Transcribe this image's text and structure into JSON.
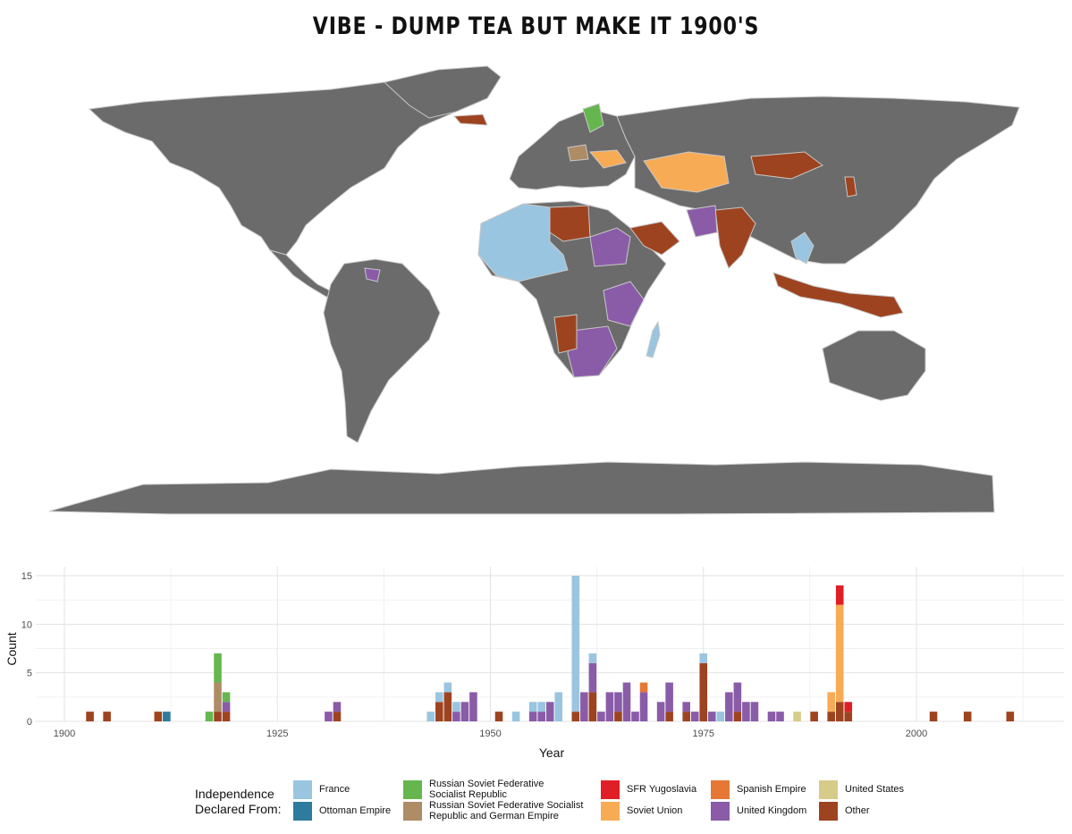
{
  "title": "VIBE - DUMP TEA BUT MAKE IT 1900'S",
  "colors": {
    "france": "#9ac5e0",
    "ottoman": "#2f7b9d",
    "rsfsr": "#66b64f",
    "rsfsr_german": "#ad8c66",
    "sfr_yugoslavia": "#e01e26",
    "soviet_union": "#f8ab55",
    "spanish_empire": "#e57835",
    "united_kingdom": "#8a5ca8",
    "united_states": "#d6cb88",
    "other": "#9e4320",
    "land": "#6b6b6b",
    "border": "#c8c8c8"
  },
  "legend": {
    "title_line1": "Independence",
    "title_line2": "Declared From:",
    "items": [
      {
        "key": "france",
        "label1": "France",
        "label2": ""
      },
      {
        "key": "ottoman",
        "label1": "Ottoman Empire",
        "label2": ""
      },
      {
        "key": "rsfsr",
        "label1": "Russian Soviet Federative",
        "label2": "Socialist Republic"
      },
      {
        "key": "rsfsr_german",
        "label1": "Russian Soviet Federative Socialist",
        "label2": "Republic and German Empire"
      },
      {
        "key": "sfr_yugoslavia",
        "label1": "SFR Yugoslavia",
        "label2": ""
      },
      {
        "key": "soviet_union",
        "label1": "Soviet Union",
        "label2": ""
      },
      {
        "key": "spanish_empire",
        "label1": "Spanish Empire",
        "label2": ""
      },
      {
        "key": "united_kingdom",
        "label1": "United Kingdom",
        "label2": ""
      },
      {
        "key": "united_states",
        "label1": "United States",
        "label2": ""
      },
      {
        "key": "other",
        "label1": "Other",
        "label2": ""
      }
    ]
  },
  "chart_data": {
    "type": "bar",
    "stacked": true,
    "xlabel": "Year",
    "ylabel": "Count",
    "xlim": [
      1898,
      2018
    ],
    "ylim": [
      0,
      15
    ],
    "xticks": [
      1900,
      1925,
      1950,
      1975,
      2000
    ],
    "yticks": [
      0,
      5,
      10,
      15
    ],
    "grid": true,
    "legend_position": "bottom",
    "series_order": [
      "other",
      "united_states",
      "united_kingdom",
      "spanish_empire",
      "soviet_union",
      "sfr_yugoslavia",
      "rsfsr_german",
      "rsfsr",
      "ottoman",
      "france"
    ],
    "bars": [
      {
        "year": 1903,
        "other": 1
      },
      {
        "year": 1905,
        "other": 1
      },
      {
        "year": 1911,
        "other": 1
      },
      {
        "year": 1912,
        "ottoman": 1
      },
      {
        "year": 1917,
        "rsfsr": 1
      },
      {
        "year": 1918,
        "other": 1,
        "rsfsr_german": 3,
        "rsfsr": 3
      },
      {
        "year": 1919,
        "other": 1,
        "united_kingdom": 1,
        "rsfsr": 1
      },
      {
        "year": 1931,
        "united_kingdom": 1
      },
      {
        "year": 1932,
        "other": 1,
        "united_kingdom": 1
      },
      {
        "year": 1943,
        "france": 1
      },
      {
        "year": 1944,
        "other": 2,
        "france": 1
      },
      {
        "year": 1945,
        "other": 3,
        "france": 1
      },
      {
        "year": 1946,
        "united_kingdom": 1,
        "france": 1
      },
      {
        "year": 1947,
        "united_kingdom": 2
      },
      {
        "year": 1948,
        "united_kingdom": 3
      },
      {
        "year": 1951,
        "other": 1
      },
      {
        "year": 1953,
        "france": 1
      },
      {
        "year": 1955,
        "united_kingdom": 1,
        "france": 1
      },
      {
        "year": 1956,
        "united_kingdom": 1,
        "france": 1
      },
      {
        "year": 1957,
        "united_kingdom": 2
      },
      {
        "year": 1958,
        "france": 3
      },
      {
        "year": 1960,
        "other": 1,
        "france": 14
      },
      {
        "year": 1961,
        "united_kingdom": 3
      },
      {
        "year": 1962,
        "other": 3,
        "united_kingdom": 3,
        "france": 1
      },
      {
        "year": 1963,
        "united_kingdom": 1
      },
      {
        "year": 1964,
        "united_kingdom": 3
      },
      {
        "year": 1965,
        "other": 1,
        "united_kingdom": 2
      },
      {
        "year": 1966,
        "united_kingdom": 4
      },
      {
        "year": 1967,
        "united_kingdom": 1
      },
      {
        "year": 1968,
        "united_kingdom": 3,
        "spanish_empire": 1
      },
      {
        "year": 1970,
        "united_kingdom": 2
      },
      {
        "year": 1971,
        "other": 1,
        "united_kingdom": 3
      },
      {
        "year": 1973,
        "other": 1,
        "united_kingdom": 1
      },
      {
        "year": 1974,
        "united_kingdom": 1
      },
      {
        "year": 1975,
        "other": 6,
        "france": 1
      },
      {
        "year": 1976,
        "united_kingdom": 1
      },
      {
        "year": 1977,
        "france": 1
      },
      {
        "year": 1978,
        "united_kingdom": 3
      },
      {
        "year": 1979,
        "other": 1,
        "united_kingdom": 3
      },
      {
        "year": 1980,
        "united_kingdom": 2
      },
      {
        "year": 1981,
        "united_kingdom": 2
      },
      {
        "year": 1983,
        "united_kingdom": 1
      },
      {
        "year": 1984,
        "united_kingdom": 1
      },
      {
        "year": 1986,
        "united_states": 1
      },
      {
        "year": 1988,
        "other": 1
      },
      {
        "year": 1990,
        "other": 1,
        "soviet_union": 2
      },
      {
        "year": 1991,
        "other": 2,
        "soviet_union": 10,
        "sfr_yugoslavia": 2
      },
      {
        "year": 1992,
        "other": 1,
        "sfr_yugoslavia": 1
      },
      {
        "year": 2002,
        "other": 1
      },
      {
        "year": 2006,
        "other": 1
      },
      {
        "year": 2011,
        "other": 1
      }
    ]
  }
}
